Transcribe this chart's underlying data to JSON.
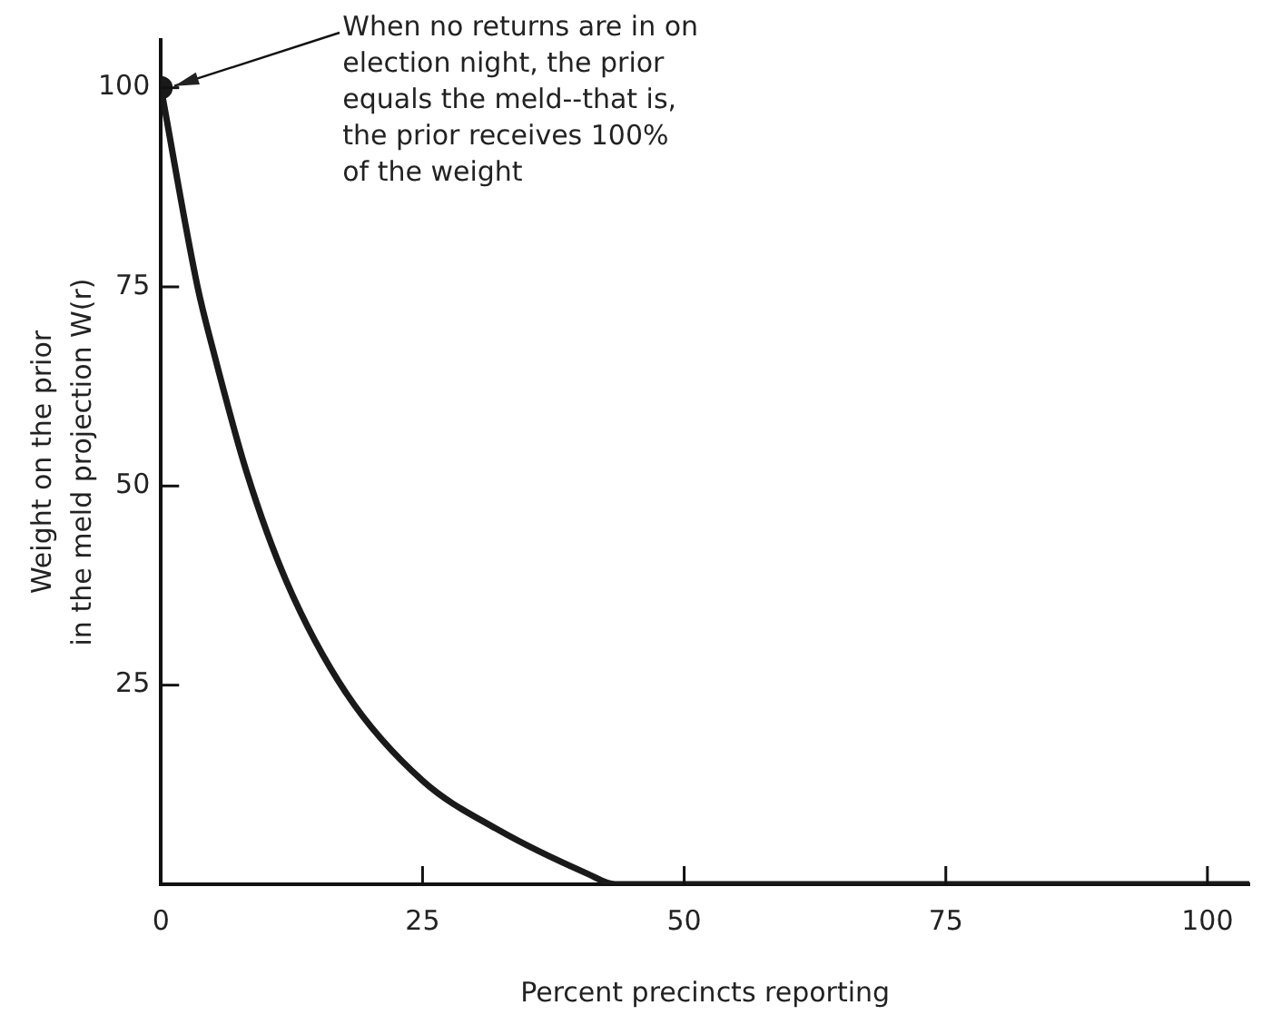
{
  "chart_data": {
    "type": "line",
    "xlabel": "Percent precincts reporting",
    "ylabel": "Weight on the prior\nin the meld projection W(r)",
    "xlim": [
      0,
      104
    ],
    "xticks": [
      0,
      25,
      50,
      75,
      100
    ],
    "ylim": [
      0,
      106
    ],
    "yticks": [
      {
        "value": 0,
        "label": null
      },
      25,
      50,
      75,
      100
    ],
    "grid": false,
    "legend": false,
    "series": [
      {
        "color": "#1a1a1a",
        "marker": "none",
        "x": [
          0,
          3.5,
          5,
          8.2,
          12,
          17.7,
          25,
          32,
          40.8,
          43.4,
          104
        ],
        "values": [
          100,
          75,
          67,
          51.7,
          38,
          24,
          13,
          7,
          1.3,
          0,
          0
        ]
      },
      {
        "type": "scatter",
        "color": "#1a1a1a",
        "marker": "circle",
        "x": [
          0
        ],
        "values": [
          100
        ]
      }
    ],
    "annotations": [
      {
        "text": "When no returns are in on\nelection night, the prior\nequals the meld--that is,\nthe prior receives 100%\nof the weight",
        "x": 0,
        "y": 100
      }
    ]
  }
}
